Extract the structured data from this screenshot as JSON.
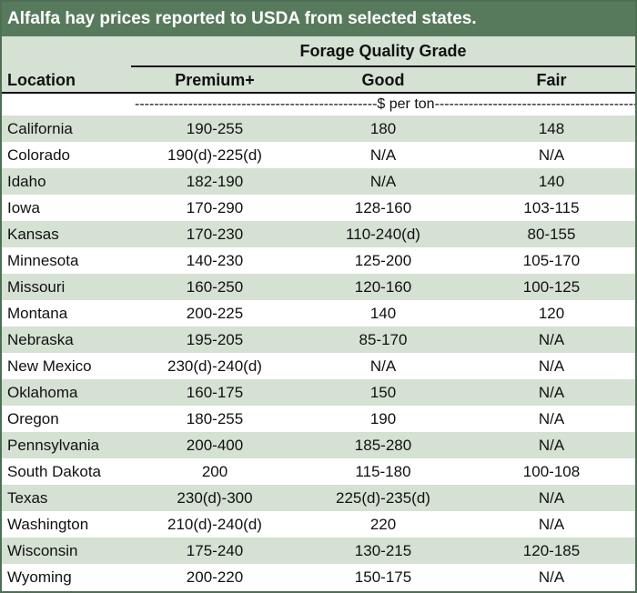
{
  "title": "Alfalfa hay prices reported to USDA from selected states.",
  "group_header": "Forage Quality Grade",
  "columns": {
    "location": "Location",
    "premium": "Premium+",
    "good": "Good",
    "fair": "Fair"
  },
  "units": "--------------------------------------------------$ per ton-------------------------------------------------",
  "rows": [
    {
      "location": "California",
      "premium": "190-255",
      "good": "180",
      "fair": "148"
    },
    {
      "location": "Colorado",
      "premium": "190(d)-225(d)",
      "good": "N/A",
      "fair": "N/A"
    },
    {
      "location": "Idaho",
      "premium": "182-190",
      "good": "N/A",
      "fair": "140"
    },
    {
      "location": "Iowa",
      "premium": "170-290",
      "good": "128-160",
      "fair": "103-115"
    },
    {
      "location": "Kansas",
      "premium": "170-230",
      "good": "110-240(d)",
      "fair": "80-155"
    },
    {
      "location": "Minnesota",
      "premium": "140-230",
      "good": "125-200",
      "fair": "105-170"
    },
    {
      "location": "Missouri",
      "premium": "160-250",
      "good": "120-160",
      "fair": "100-125"
    },
    {
      "location": "Montana",
      "premium": "200-225",
      "good": "140",
      "fair": "120"
    },
    {
      "location": "Nebraska",
      "premium": "195-205",
      "good": "85-170",
      "fair": "N/A"
    },
    {
      "location": "New Mexico",
      "premium": "230(d)-240(d)",
      "good": "N/A",
      "fair": "N/A"
    },
    {
      "location": "Oklahoma",
      "premium": "160-175",
      "good": "150",
      "fair": "N/A"
    },
    {
      "location": "Oregon",
      "premium": "180-255",
      "good": "190",
      "fair": "N/A"
    },
    {
      "location": "Pennsylvania",
      "premium": "200-400",
      "good": "185-280",
      "fair": "N/A"
    },
    {
      "location": "South Dakota",
      "premium": "200",
      "good": "115-180",
      "fair": "100-108"
    },
    {
      "location": "Texas",
      "premium": "230(d)-300",
      "good": "225(d)-235(d)",
      "fair": "N/A"
    },
    {
      "location": "Washington",
      "premium": "210(d)-240(d)",
      "good": "220",
      "fair": "N/A"
    },
    {
      "location": "Wisconsin",
      "premium": "175-240",
      "good": "130-215",
      "fair": "120-185"
    },
    {
      "location": "Wyoming",
      "premium": "200-220",
      "good": "150-175",
      "fair": "N/A"
    }
  ],
  "colors": {
    "title_bar": "#587a5c",
    "band": "#d5e1d3",
    "border": "#4f6f54"
  }
}
